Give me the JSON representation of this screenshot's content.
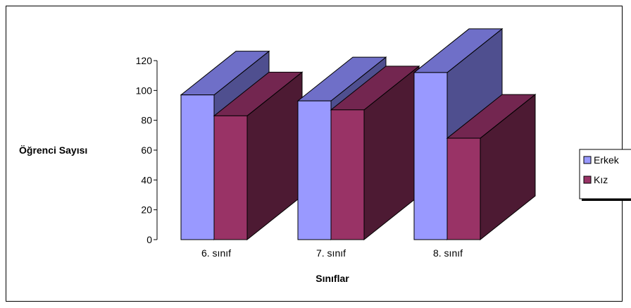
{
  "chart_data": {
    "type": "bar",
    "three_d": true,
    "title": "",
    "xlabel": "Sınıflar",
    "ylabel": "Öğrenci Sayısı",
    "categories": [
      "6. sınıf",
      "7. sınıf",
      "8. sınıf"
    ],
    "series": [
      {
        "name": "Erkek",
        "values": [
          97,
          93,
          112
        ],
        "color": "#9999ff",
        "side_color": "#4f4f8f",
        "top_color": "#6f6fc8"
      },
      {
        "name": "Kız",
        "values": [
          83,
          87,
          68
        ],
        "color": "#993366",
        "side_color": "#4d1a33",
        "top_color": "#732650"
      }
    ],
    "ylim": [
      0,
      120
    ],
    "yticks": [
      0,
      20,
      40,
      60,
      80,
      100,
      120
    ],
    "grid": false,
    "legend_position": "right"
  }
}
